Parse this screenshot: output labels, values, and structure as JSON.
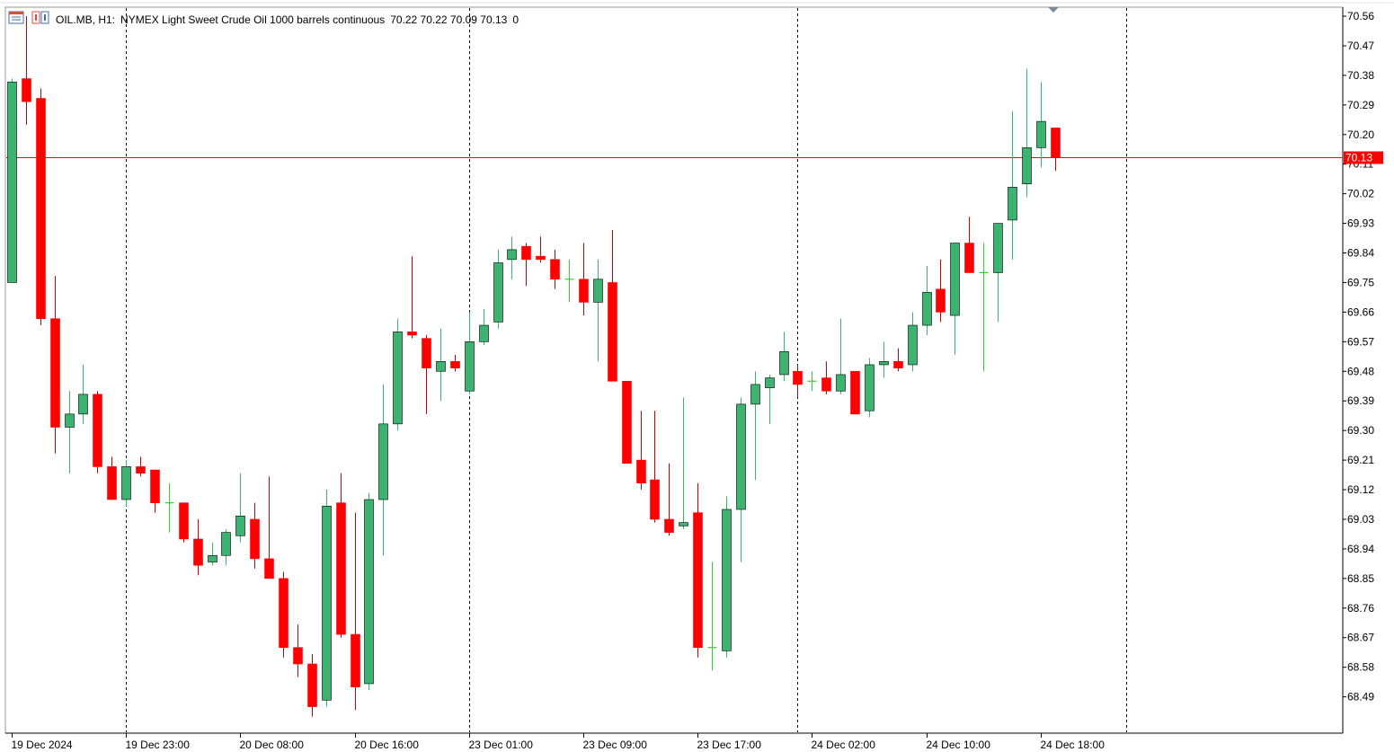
{
  "header": {
    "symbol": "OIL.MB, H1:",
    "description": "NYMEX Light Sweet Crude Oil 1000 barrels continuous",
    "ohlc": "70.22 70.22 70.09 70.13",
    "volume": "0"
  },
  "colors": {
    "bull": "#3cb371",
    "bear": "#ff0000",
    "doji": "#33cc33",
    "wick_bear": "#cc0000",
    "price_line": "#ff0000",
    "grid": "#000000",
    "border": "#9a9a9a",
    "background": "#ffffff"
  },
  "icons": [
    "chart-window-icon",
    "one-click-trading-icon",
    "shift-marker-icon"
  ],
  "current_price_label": "70.13",
  "chart_data": {
    "type": "candlestick",
    "timeframe": "H1",
    "current_price": 70.13,
    "y_ticks": [
      "70.56",
      "70.47",
      "70.38",
      "70.29",
      "70.20",
      "70.11",
      "70.02",
      "69.93",
      "69.84",
      "69.75",
      "69.66",
      "69.57",
      "69.48",
      "69.39",
      "69.30",
      "69.21",
      "69.12",
      "69.03",
      "68.94",
      "68.85",
      "68.76",
      "68.67",
      "68.58",
      "68.49"
    ],
    "x_labels": [
      "19 Dec 2024",
      "19 Dec 23:00",
      "20 Dec 08:00",
      "20 Dec 16:00",
      "23 Dec 01:00",
      "23 Dec 09:00",
      "23 Dec 17:00",
      "24 Dec 02:00",
      "24 Dec 10:00",
      "24 Dec 18:00"
    ],
    "x_label_candle_index": [
      0,
      8,
      16,
      24,
      32,
      40,
      48,
      56,
      64,
      72
    ],
    "session_separator_candle_index": [
      8,
      32,
      55,
      78
    ],
    "candles": [
      {
        "o": 69.75,
        "h": 70.37,
        "l": 69.75,
        "c": 70.36
      },
      {
        "o": 70.37,
        "h": 70.56,
        "l": 70.23,
        "c": 70.3
      },
      {
        "o": 70.31,
        "h": 70.34,
        "l": 69.62,
        "c": 69.64
      },
      {
        "o": 69.64,
        "h": 69.77,
        "l": 69.23,
        "c": 69.31
      },
      {
        "o": 69.31,
        "h": 69.42,
        "l": 69.17,
        "c": 69.35
      },
      {
        "o": 69.35,
        "h": 69.5,
        "l": 69.32,
        "c": 69.41
      },
      {
        "o": 69.41,
        "h": 69.42,
        "l": 69.17,
        "c": 69.19
      },
      {
        "o": 69.19,
        "h": 69.22,
        "l": 69.09,
        "c": 69.09
      },
      {
        "o": 69.09,
        "h": 69.21,
        "l": 69.07,
        "c": 69.19
      },
      {
        "o": 69.19,
        "h": 69.22,
        "l": 69.16,
        "c": 69.17
      },
      {
        "o": 69.18,
        "h": 69.18,
        "l": 69.05,
        "c": 69.08
      },
      {
        "o": 69.08,
        "h": 69.14,
        "l": 68.99,
        "c": 69.08
      },
      {
        "o": 69.08,
        "h": 69.08,
        "l": 68.96,
        "c": 68.97
      },
      {
        "o": 68.97,
        "h": 69.03,
        "l": 68.86,
        "c": 68.89
      },
      {
        "o": 68.9,
        "h": 68.96,
        "l": 68.89,
        "c": 68.92
      },
      {
        "o": 68.92,
        "h": 69.0,
        "l": 68.89,
        "c": 68.99
      },
      {
        "o": 68.98,
        "h": 69.17,
        "l": 68.96,
        "c": 69.04
      },
      {
        "o": 69.03,
        "h": 69.08,
        "l": 68.88,
        "c": 68.91
      },
      {
        "o": 68.91,
        "h": 69.16,
        "l": 68.86,
        "c": 68.85
      },
      {
        "o": 68.85,
        "h": 68.87,
        "l": 68.61,
        "c": 68.64
      },
      {
        "o": 68.64,
        "h": 68.71,
        "l": 68.55,
        "c": 68.59
      },
      {
        "o": 68.59,
        "h": 68.62,
        "l": 68.43,
        "c": 68.46
      },
      {
        "o": 68.48,
        "h": 69.12,
        "l": 68.46,
        "c": 69.07
      },
      {
        "o": 69.08,
        "h": 69.17,
        "l": 68.67,
        "c": 68.68
      },
      {
        "o": 68.68,
        "h": 69.05,
        "l": 68.45,
        "c": 68.52
      },
      {
        "o": 68.53,
        "h": 69.11,
        "l": 68.51,
        "c": 69.09
      },
      {
        "o": 69.09,
        "h": 69.44,
        "l": 68.92,
        "c": 69.32
      },
      {
        "o": 69.32,
        "h": 69.64,
        "l": 69.3,
        "c": 69.6
      },
      {
        "o": 69.6,
        "h": 69.83,
        "l": 69.58,
        "c": 69.59
      },
      {
        "o": 69.58,
        "h": 69.59,
        "l": 69.35,
        "c": 69.49
      },
      {
        "o": 69.48,
        "h": 69.61,
        "l": 69.39,
        "c": 69.51
      },
      {
        "o": 69.51,
        "h": 69.53,
        "l": 69.48,
        "c": 69.49
      },
      {
        "o": 69.42,
        "h": 69.66,
        "l": 69.41,
        "c": 69.57
      },
      {
        "o": 69.57,
        "h": 69.67,
        "l": 69.56,
        "c": 69.62
      },
      {
        "o": 69.63,
        "h": 69.85,
        "l": 69.61,
        "c": 69.81
      },
      {
        "o": 69.82,
        "h": 69.89,
        "l": 69.76,
        "c": 69.85
      },
      {
        "o": 69.86,
        "h": 69.87,
        "l": 69.74,
        "c": 69.82
      },
      {
        "o": 69.83,
        "h": 69.89,
        "l": 69.81,
        "c": 69.82
      },
      {
        "o": 69.82,
        "h": 69.85,
        "l": 69.73,
        "c": 69.76
      },
      {
        "o": 69.76,
        "h": 69.82,
        "l": 69.69,
        "c": 69.76
      },
      {
        "o": 69.76,
        "h": 69.87,
        "l": 69.65,
        "c": 69.69
      },
      {
        "o": 69.69,
        "h": 69.82,
        "l": 69.51,
        "c": 69.76
      },
      {
        "o": 69.75,
        "h": 69.91,
        "l": 69.45,
        "c": 69.45
      },
      {
        "o": 69.45,
        "h": 69.45,
        "l": 69.2,
        "c": 69.2
      },
      {
        "o": 69.21,
        "h": 69.36,
        "l": 69.12,
        "c": 69.14
      },
      {
        "o": 69.15,
        "h": 69.36,
        "l": 69.02,
        "c": 69.03
      },
      {
        "o": 69.03,
        "h": 69.2,
        "l": 68.98,
        "c": 68.99
      },
      {
        "o": 69.01,
        "h": 69.4,
        "l": 69.0,
        "c": 69.02
      },
      {
        "o": 69.05,
        "h": 69.14,
        "l": 68.61,
        "c": 68.64
      },
      {
        "o": 68.64,
        "h": 68.9,
        "l": 68.57,
        "c": 68.64
      },
      {
        "o": 68.63,
        "h": 69.1,
        "l": 68.61,
        "c": 69.06
      },
      {
        "o": 69.06,
        "h": 69.4,
        "l": 68.9,
        "c": 69.38
      },
      {
        "o": 69.38,
        "h": 69.48,
        "l": 69.15,
        "c": 69.44
      },
      {
        "o": 69.43,
        "h": 69.47,
        "l": 69.32,
        "c": 69.46
      },
      {
        "o": 69.47,
        "h": 69.6,
        "l": 69.45,
        "c": 69.54
      },
      {
        "o": 69.48,
        "h": 69.5,
        "l": 69.4,
        "c": 69.44
      },
      {
        "o": 69.45,
        "h": 69.48,
        "l": 69.42,
        "c": 69.45
      },
      {
        "o": 69.46,
        "h": 69.51,
        "l": 69.41,
        "c": 69.42
      },
      {
        "o": 69.42,
        "h": 69.64,
        "l": 69.41,
        "c": 69.47
      },
      {
        "o": 69.48,
        "h": 69.48,
        "l": 69.35,
        "c": 69.35
      },
      {
        "o": 69.36,
        "h": 69.52,
        "l": 69.34,
        "c": 69.5
      },
      {
        "o": 69.5,
        "h": 69.57,
        "l": 69.46,
        "c": 69.51
      },
      {
        "o": 69.51,
        "h": 69.55,
        "l": 69.48,
        "c": 69.49
      },
      {
        "o": 69.5,
        "h": 69.66,
        "l": 69.48,
        "c": 69.62
      },
      {
        "o": 69.62,
        "h": 69.8,
        "l": 69.59,
        "c": 69.72
      },
      {
        "o": 69.73,
        "h": 69.82,
        "l": 69.63,
        "c": 69.66
      },
      {
        "o": 69.65,
        "h": 69.87,
        "l": 69.53,
        "c": 69.87
      },
      {
        "o": 69.87,
        "h": 69.95,
        "l": 69.78,
        "c": 69.78
      },
      {
        "o": 69.78,
        "h": 69.87,
        "l": 69.48,
        "c": 69.78
      },
      {
        "o": 69.78,
        "h": 69.93,
        "l": 69.63,
        "c": 69.93
      },
      {
        "o": 69.94,
        "h": 70.27,
        "l": 69.82,
        "c": 70.04
      },
      {
        "o": 70.05,
        "h": 70.4,
        "l": 70.01,
        "c": 70.16
      },
      {
        "o": 70.16,
        "h": 70.36,
        "l": 70.1,
        "c": 70.24
      },
      {
        "o": 70.22,
        "h": 70.22,
        "l": 70.09,
        "c": 70.13
      }
    ]
  }
}
